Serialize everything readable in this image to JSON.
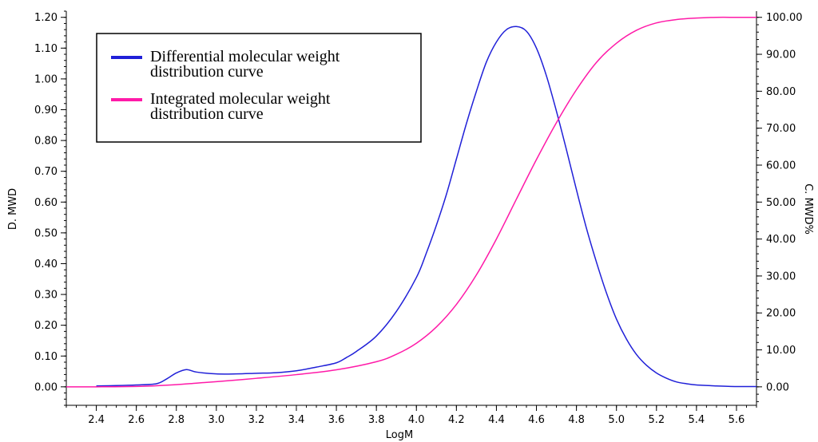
{
  "chart_data": {
    "type": "line",
    "xlabel": "LogM",
    "ylabel_left": "D. MWD",
    "ylabel_right": "C. MWD%",
    "xlim": [
      2.25,
      5.7
    ],
    "ylim_left": [
      -0.06,
      1.22
    ],
    "ylim_right": [
      -5.0,
      101.67
    ],
    "x_ticks": [
      "2.4",
      "2.6",
      "2.8",
      "3.0",
      "3.2",
      "3.4",
      "3.6",
      "3.8",
      "4.0",
      "4.2",
      "4.4",
      "4.6",
      "4.8",
      "5.0",
      "5.2",
      "5.4",
      "5.6"
    ],
    "y_left_ticks": [
      "0.00",
      "0.10",
      "0.20",
      "0.30",
      "0.40",
      "0.50",
      "0.60",
      "0.70",
      "0.80",
      "0.90",
      "1.00",
      "1.10",
      "1.20"
    ],
    "y_right_ticks": [
      "0.00",
      "10.00",
      "20.00",
      "30.00",
      "40.00",
      "50.00",
      "60.00",
      "70.00",
      "80.00",
      "90.00",
      "100.00"
    ],
    "legend": {
      "position": "top-left",
      "entries": [
        {
          "label_lines": [
            "Differential molecular weight",
            "distribution curve"
          ],
          "color": "#2020d8"
        },
        {
          "label_lines": [
            "Integrated molecular weight",
            "distribution curve"
          ],
          "color": "#ff1aa8"
        }
      ]
    },
    "series": [
      {
        "name": "Differential molecular weight distribution curve",
        "axis": "left",
        "color": "#2020d8",
        "x": [
          2.4,
          2.5,
          2.6,
          2.7,
          2.75,
          2.8,
          2.85,
          2.9,
          3.0,
          3.1,
          3.2,
          3.3,
          3.4,
          3.5,
          3.6,
          3.65,
          3.7,
          3.8,
          3.9,
          4.0,
          4.05,
          4.1,
          4.15,
          4.2,
          4.25,
          4.3,
          4.35,
          4.4,
          4.45,
          4.5,
          4.55,
          4.6,
          4.65,
          4.7,
          4.75,
          4.8,
          4.85,
          4.9,
          4.95,
          5.0,
          5.05,
          5.1,
          5.15,
          5.2,
          5.25,
          5.3,
          5.35,
          5.4,
          5.5,
          5.6,
          5.7
        ],
        "y": [
          0.003,
          0.004,
          0.006,
          0.01,
          0.025,
          0.045,
          0.056,
          0.048,
          0.042,
          0.042,
          0.044,
          0.046,
          0.052,
          0.064,
          0.078,
          0.095,
          0.115,
          0.165,
          0.245,
          0.355,
          0.435,
          0.525,
          0.625,
          0.74,
          0.855,
          0.96,
          1.055,
          1.12,
          1.16,
          1.17,
          1.155,
          1.1,
          1.01,
          0.895,
          0.77,
          0.64,
          0.515,
          0.405,
          0.305,
          0.22,
          0.155,
          0.105,
          0.07,
          0.045,
          0.028,
          0.016,
          0.01,
          0.006,
          0.003,
          0.001,
          0.001
        ]
      },
      {
        "name": "Integrated molecular weight distribution curve",
        "axis": "right",
        "color": "#ff1aa8",
        "x": [
          2.25,
          2.4,
          2.6,
          2.7,
          2.8,
          2.9,
          3.0,
          3.2,
          3.4,
          3.6,
          3.8,
          3.9,
          4.0,
          4.1,
          4.2,
          4.3,
          4.4,
          4.5,
          4.6,
          4.7,
          4.8,
          4.9,
          5.0,
          5.1,
          5.2,
          5.3,
          5.4,
          5.5,
          5.6,
          5.7
        ],
        "y": [
          0.0,
          0.0,
          0.1,
          0.3,
          0.6,
          1.0,
          1.4,
          2.3,
          3.3,
          4.6,
          6.8,
          8.8,
          11.8,
          16.2,
          22.3,
          30.3,
          40.0,
          50.8,
          61.5,
          71.5,
          80.4,
          87.8,
          93.0,
          96.5,
          98.5,
          99.4,
          99.8,
          100.0,
          100.0,
          100.0
        ]
      }
    ]
  }
}
